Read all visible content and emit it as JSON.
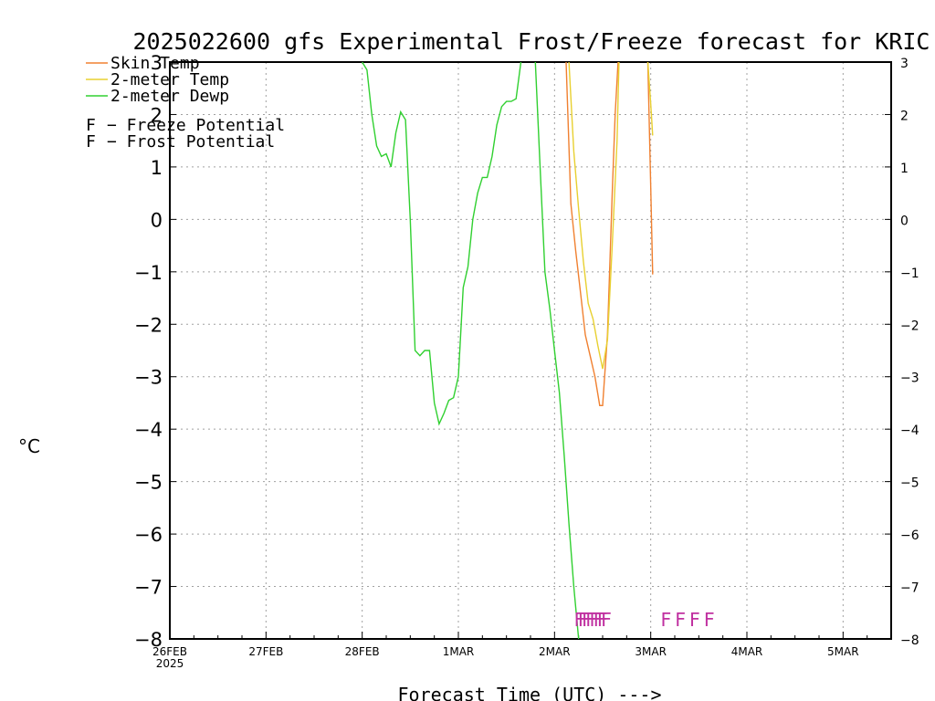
{
  "chart_data": {
    "type": "line",
    "title": "2025022600 gfs Experimental Frost/Freeze forecast for KRIC",
    "ylabel": "°C",
    "xlabel": "Forecast Time (UTC) --->",
    "ylim": [
      -8,
      3
    ],
    "yticks": [
      3,
      2,
      1,
      0,
      -1,
      -2,
      -3,
      -4,
      -5,
      -6,
      -7,
      -8
    ],
    "ytick_labels": [
      "3",
      "2",
      "1",
      "0",
      "−1",
      "−2",
      "−3",
      "−4",
      "−5",
      "−6",
      "−7",
      "−8"
    ],
    "xlim": [
      0,
      7.5
    ],
    "xticks": [
      {
        "x": 0,
        "label": "26FEB",
        "sub": "2025"
      },
      {
        "x": 1,
        "label": "27FEB"
      },
      {
        "x": 2,
        "label": "28FEB"
      },
      {
        "x": 3,
        "label": "1MAR"
      },
      {
        "x": 4,
        "label": "2MAR"
      },
      {
        "x": 5,
        "label": "3MAR"
      },
      {
        "x": 6,
        "label": "4MAR"
      },
      {
        "x": 7,
        "label": "5MAR"
      }
    ],
    "grid": true,
    "legend_position": "top-left",
    "series": [
      {
        "name": "Skin Temp",
        "color": "#f08030",
        "points": [
          [
            4.12,
            3.0
          ],
          [
            4.17,
            0.3
          ],
          [
            4.22,
            -0.6
          ],
          [
            4.27,
            -1.4
          ],
          [
            4.32,
            -2.2
          ],
          [
            4.37,
            -2.6
          ],
          [
            4.42,
            -3.0
          ],
          [
            4.47,
            -3.55
          ],
          [
            4.5,
            -3.55
          ],
          [
            4.55,
            -2.2
          ],
          [
            4.6,
            0.5
          ],
          [
            4.63,
            2.0
          ],
          [
            4.66,
            3.0
          ],
          [
            null,
            null
          ],
          [
            4.97,
            3.0
          ],
          [
            5.0,
            0.6
          ],
          [
            5.02,
            -1.05
          ]
        ]
      },
      {
        "name": "2-meter Temp",
        "color": "#e8d030",
        "points": [
          [
            4.15,
            3.0
          ],
          [
            4.2,
            1.3
          ],
          [
            4.25,
            0.2
          ],
          [
            4.3,
            -0.8
          ],
          [
            4.35,
            -1.6
          ],
          [
            4.4,
            -1.9
          ],
          [
            4.45,
            -2.4
          ],
          [
            4.5,
            -2.85
          ],
          [
            4.55,
            -2.3
          ],
          [
            4.6,
            -0.5
          ],
          [
            4.65,
            1.5
          ],
          [
            4.67,
            3.0
          ],
          [
            null,
            null
          ],
          [
            4.97,
            3.0
          ],
          [
            5.0,
            2.2
          ],
          [
            5.02,
            1.6
          ]
        ]
      },
      {
        "name": "2-meter Dewp",
        "color": "#30d030",
        "points": [
          [
            2.0,
            3.0
          ],
          [
            2.05,
            2.85
          ],
          [
            2.1,
            2.0
          ],
          [
            2.15,
            1.4
          ],
          [
            2.2,
            1.2
          ],
          [
            2.25,
            1.25
          ],
          [
            2.3,
            1.0
          ],
          [
            2.35,
            1.65
          ],
          [
            2.4,
            2.05
          ],
          [
            2.45,
            1.9
          ],
          [
            2.5,
            0.0
          ],
          [
            2.55,
            -2.5
          ],
          [
            2.6,
            -2.6
          ],
          [
            2.65,
            -2.5
          ],
          [
            2.7,
            -2.5
          ],
          [
            2.75,
            -3.5
          ],
          [
            2.8,
            -3.9
          ],
          [
            2.85,
            -3.7
          ],
          [
            2.9,
            -3.45
          ],
          [
            2.95,
            -3.4
          ],
          [
            3.0,
            -3.0
          ],
          [
            3.05,
            -1.3
          ],
          [
            3.1,
            -0.9
          ],
          [
            3.15,
            0.0
          ],
          [
            3.2,
            0.5
          ],
          [
            3.25,
            0.8
          ],
          [
            3.3,
            0.8
          ],
          [
            3.35,
            1.2
          ],
          [
            3.4,
            1.8
          ],
          [
            3.45,
            2.15
          ],
          [
            3.5,
            2.25
          ],
          [
            3.55,
            2.25
          ],
          [
            3.6,
            2.3
          ],
          [
            3.65,
            3.0
          ],
          [
            null,
            null
          ],
          [
            3.8,
            3.0
          ],
          [
            3.85,
            1.0
          ],
          [
            3.9,
            -1.0
          ],
          [
            3.95,
            -1.7
          ],
          [
            4.0,
            -2.5
          ],
          [
            4.05,
            -3.3
          ],
          [
            4.1,
            -4.5
          ],
          [
            4.15,
            -5.8
          ],
          [
            4.2,
            -7.0
          ],
          [
            4.25,
            -8.0
          ]
        ]
      }
    ],
    "potential_legend": [
      {
        "symbol": "F",
        "label": "− Freeze Potential",
        "color": "#c030a0"
      },
      {
        "symbol": "F",
        "label": "− Frost Potential",
        "color": "#5060e0"
      }
    ],
    "freeze_markers": {
      "symbol": "F",
      "color": "#c030a0",
      "y": -7.6,
      "x": [
        4.2,
        4.24,
        4.28,
        4.32,
        4.36,
        4.4,
        4.44,
        4.48,
        5.1,
        5.25,
        5.4,
        5.55
      ]
    }
  }
}
